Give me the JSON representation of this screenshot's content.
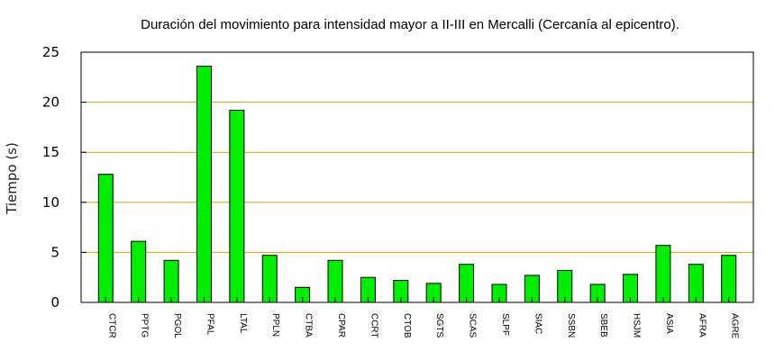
{
  "chart_data": {
    "type": "bar",
    "title": "Duración del movimiento para intensidad mayor a II-III en Mercalli (Cercanía al epicentro).",
    "xlabel": "",
    "ylabel": "Tiempo (s)",
    "ylim": [
      0,
      25
    ],
    "yticks": [
      "0",
      "5",
      "10",
      "15",
      "20",
      "25"
    ],
    "grid": true,
    "categories": [
      "CTCR",
      "PPTG",
      "PGOL",
      "PFAL",
      "LTAL",
      "PPLN",
      "CTBA",
      "CPAR",
      "CCRT",
      "CTOB",
      "SGTS",
      "SCAS",
      "SLPF",
      "SIAC",
      "SSBN",
      "SBEB",
      "HSJM",
      "ASIA",
      "AFRA",
      "AGRE"
    ],
    "values": [
      12.8,
      6.1,
      4.2,
      23.6,
      19.2,
      4.7,
      1.5,
      4.2,
      2.5,
      2.2,
      1.9,
      3.8,
      1.8,
      2.7,
      3.2,
      1.8,
      2.8,
      5.7,
      3.8,
      4.7
    ],
    "bar_color": "#00ee00",
    "grid_color": "#d8a000"
  }
}
